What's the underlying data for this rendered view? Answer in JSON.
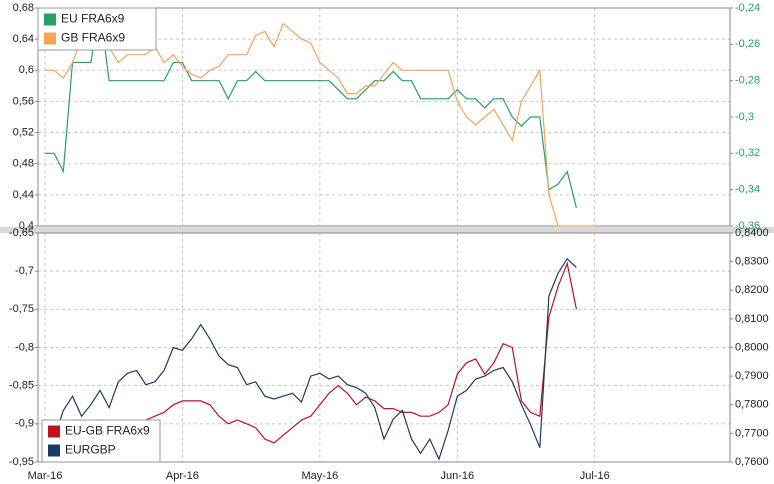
{
  "chart_data": [
    {
      "type": "line",
      "ylim": [
        0.4,
        0.68
      ],
      "yticks": [
        {
          "value": 0.4,
          "label": "0,4"
        },
        {
          "value": 0.44,
          "label": "0,44"
        },
        {
          "value": 0.48,
          "label": "0,48"
        },
        {
          "value": 0.52,
          "label": "0,52"
        },
        {
          "value": 0.56,
          "label": "0,56"
        },
        {
          "value": 0.6,
          "label": "0,6"
        },
        {
          "value": 0.64,
          "label": "0,64"
        },
        {
          "value": 0.68,
          "label": "0,68"
        }
      ],
      "y2lim": [
        -0.36,
        -0.24
      ],
      "y2ticks": [
        {
          "value": -0.36,
          "label": "-0,36"
        },
        {
          "value": -0.34,
          "label": "-0,34"
        },
        {
          "value": -0.32,
          "label": "-0,32"
        },
        {
          "value": -0.3,
          "label": "-0,3"
        },
        {
          "value": -0.28,
          "label": "-0,28"
        },
        {
          "value": -0.26,
          "label": "-0,26"
        },
        {
          "value": -0.24,
          "label": "-0,24"
        }
      ],
      "y2color": "#21a366",
      "grid": true,
      "legend": "top-left",
      "series": [
        {
          "name": "EU FRA6x9",
          "color": "#21a366",
          "axis": "y2",
          "values": [
            -0.32,
            -0.32,
            -0.33,
            -0.27,
            -0.27,
            -0.27,
            -0.24,
            -0.28,
            -0.28,
            -0.28,
            -0.28,
            -0.28,
            -0.28,
            -0.28,
            -0.27,
            -0.27,
            -0.28,
            -0.28,
            -0.28,
            -0.28,
            -0.29,
            -0.28,
            -0.28,
            -0.275,
            -0.28,
            -0.28,
            -0.28,
            -0.28,
            -0.28,
            -0.28,
            -0.28,
            -0.28,
            -0.285,
            -0.29,
            -0.29,
            -0.285,
            -0.28,
            -0.28,
            -0.275,
            -0.28,
            -0.28,
            -0.29,
            -0.29,
            -0.29,
            -0.29,
            -0.285,
            -0.29,
            -0.29,
            -0.295,
            -0.29,
            -0.29,
            -0.3,
            -0.305,
            -0.3,
            -0.3,
            -0.34,
            -0.337,
            -0.33,
            -0.35,
            null,
            null,
            null,
            null,
            null,
            null,
            null,
            null,
            null,
            null,
            null,
            null,
            null,
            null,
            null,
            null
          ]
        },
        {
          "name": "GB FRA6x9",
          "color": "#f5a35a",
          "values": [
            0.6,
            0.6,
            0.59,
            0.61,
            0.64,
            0.625,
            0.63,
            0.63,
            0.61,
            0.62,
            0.62,
            0.62,
            0.63,
            0.61,
            0.62,
            0.605,
            0.595,
            0.59,
            0.6,
            0.605,
            0.62,
            0.62,
            0.62,
            0.645,
            0.65,
            0.63,
            0.66,
            0.65,
            0.64,
            0.635,
            0.61,
            0.6,
            0.59,
            0.57,
            0.57,
            0.58,
            0.58,
            0.595,
            0.61,
            0.6,
            0.6,
            0.6,
            0.6,
            0.6,
            0.6,
            0.56,
            0.54,
            0.53,
            0.54,
            0.55,
            0.53,
            0.51,
            0.56,
            0.58,
            0.6,
            0.44,
            0.4,
            0.4,
            0.4,
            0.4,
            0.4,
            null,
            null,
            null,
            null,
            null,
            null,
            null,
            null,
            null,
            null,
            null,
            null,
            null,
            null
          ]
        }
      ]
    },
    {
      "type": "line",
      "categories": [
        "Mar-16",
        null,
        null,
        null,
        null,
        null,
        null,
        null,
        null,
        null,
        null,
        null,
        null,
        null,
        null,
        "Apr-16",
        null,
        null,
        null,
        null,
        null,
        null,
        null,
        null,
        null,
        null,
        null,
        null,
        null,
        null,
        "May-16",
        null,
        null,
        null,
        null,
        null,
        null,
        null,
        null,
        null,
        null,
        null,
        null,
        null,
        null,
        "Jun-16",
        null,
        null,
        null,
        null,
        null,
        null,
        null,
        null,
        null,
        null,
        null,
        null,
        null,
        null,
        "Jul-16",
        null,
        null,
        null,
        null,
        null,
        null,
        null,
        null,
        null,
        null,
        null,
        null,
        null,
        null
      ],
      "ylim": [
        -0.95,
        -0.65
      ],
      "yticks": [
        {
          "value": -0.95,
          "label": "-0,95"
        },
        {
          "value": -0.9,
          "label": "-0,9"
        },
        {
          "value": -0.85,
          "label": "-0,85"
        },
        {
          "value": -0.8,
          "label": "-0,8"
        },
        {
          "value": -0.75,
          "label": "-0,75"
        },
        {
          "value": -0.7,
          "label": "-0,7"
        },
        {
          "value": -0.65,
          "label": "-0,65"
        }
      ],
      "y2lim": [
        0.76,
        0.84
      ],
      "y2ticks": [
        {
          "value": 0.76,
          "label": "0,7600"
        },
        {
          "value": 0.77,
          "label": "0,7700"
        },
        {
          "value": 0.78,
          "label": "0,7800"
        },
        {
          "value": 0.79,
          "label": "0,7900"
        },
        {
          "value": 0.8,
          "label": "0,8000"
        },
        {
          "value": 0.81,
          "label": "0,8100"
        },
        {
          "value": 0.82,
          "label": "0,8200"
        },
        {
          "value": 0.83,
          "label": "0,8300"
        },
        {
          "value": 0.84,
          "label": "0,8400"
        }
      ],
      "y2color": "#222222",
      "grid": true,
      "legend": "bottom-left",
      "series": [
        {
          "name": "EU-GB FRA6x9",
          "color": "#c0111f",
          "values": [
            -0.91,
            -0.91,
            -0.905,
            -0.895,
            -0.905,
            -0.91,
            -0.895,
            -0.91,
            -0.9,
            -0.905,
            -0.9,
            -0.895,
            -0.89,
            -0.885,
            -0.875,
            -0.87,
            -0.87,
            -0.87,
            -0.875,
            -0.89,
            -0.9,
            -0.895,
            -0.9,
            -0.905,
            -0.92,
            -0.925,
            -0.915,
            -0.905,
            -0.895,
            -0.89,
            -0.875,
            -0.86,
            -0.85,
            -0.86,
            -0.875,
            -0.865,
            -0.87,
            -0.88,
            -0.88,
            -0.885,
            -0.885,
            -0.89,
            -0.89,
            -0.885,
            -0.875,
            -0.835,
            -0.82,
            -0.815,
            -0.835,
            -0.82,
            -0.795,
            -0.8,
            -0.87,
            -0.885,
            -0.89,
            -0.76,
            -0.72,
            -0.69,
            -0.75,
            null,
            null,
            null,
            null,
            null,
            null,
            null,
            null,
            null,
            null,
            null,
            null,
            null,
            null,
            null,
            null
          ]
        },
        {
          "name": "EURGBP",
          "color": "#1f3864",
          "axis": "y2",
          "values": [
            0.771,
            0.768,
            0.778,
            0.783,
            0.776,
            0.78,
            0.785,
            0.779,
            0.788,
            0.791,
            0.792,
            0.787,
            0.788,
            0.792,
            0.8,
            0.799,
            0.803,
            0.808,
            0.803,
            0.797,
            0.794,
            0.793,
            0.787,
            0.788,
            0.783,
            0.782,
            0.783,
            0.784,
            0.781,
            0.79,
            0.791,
            0.789,
            0.79,
            0.787,
            0.786,
            0.784,
            0.779,
            0.768,
            0.775,
            0.778,
            0.768,
            0.763,
            0.768,
            0.761,
            0.771,
            0.783,
            0.785,
            0.789,
            0.79,
            0.792,
            0.793,
            0.788,
            0.78,
            0.773,
            0.765,
            0.818,
            0.826,
            0.831,
            0.828,
            null,
            null,
            null,
            null,
            null,
            null,
            null,
            null,
            null,
            null,
            null,
            null,
            null,
            null,
            null,
            null
          ]
        }
      ]
    }
  ]
}
